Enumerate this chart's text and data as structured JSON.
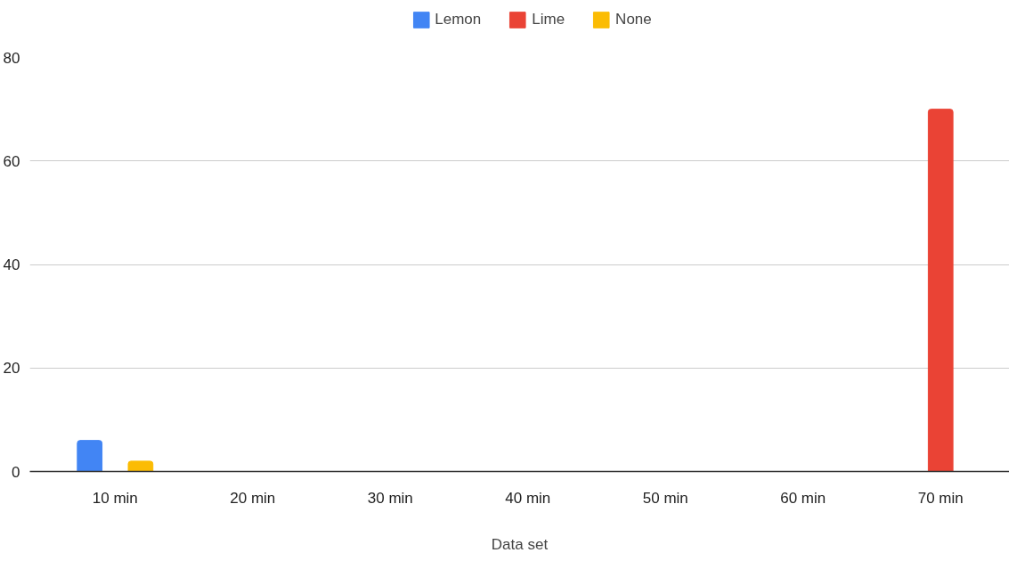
{
  "chart_data": {
    "type": "bar",
    "xlabel": "Data set",
    "categories": [
      "10 min",
      "20 min",
      "30 min",
      "40 min",
      "50 min",
      "60 min",
      "70 min"
    ],
    "series": [
      {
        "name": "Lemon",
        "color": "#4285f4",
        "values": [
          6,
          null,
          null,
          null,
          null,
          null,
          null
        ]
      },
      {
        "name": "Lime",
        "color": "#ea4335",
        "values": [
          null,
          null,
          null,
          null,
          null,
          null,
          70
        ]
      },
      {
        "name": "None",
        "color": "#fbbc04",
        "values": [
          2,
          null,
          null,
          null,
          null,
          null,
          null
        ]
      }
    ],
    "ylim": [
      0,
      80
    ],
    "yticks": [
      0,
      20,
      40,
      60,
      80
    ],
    "grid": "y",
    "legend": "top"
  }
}
